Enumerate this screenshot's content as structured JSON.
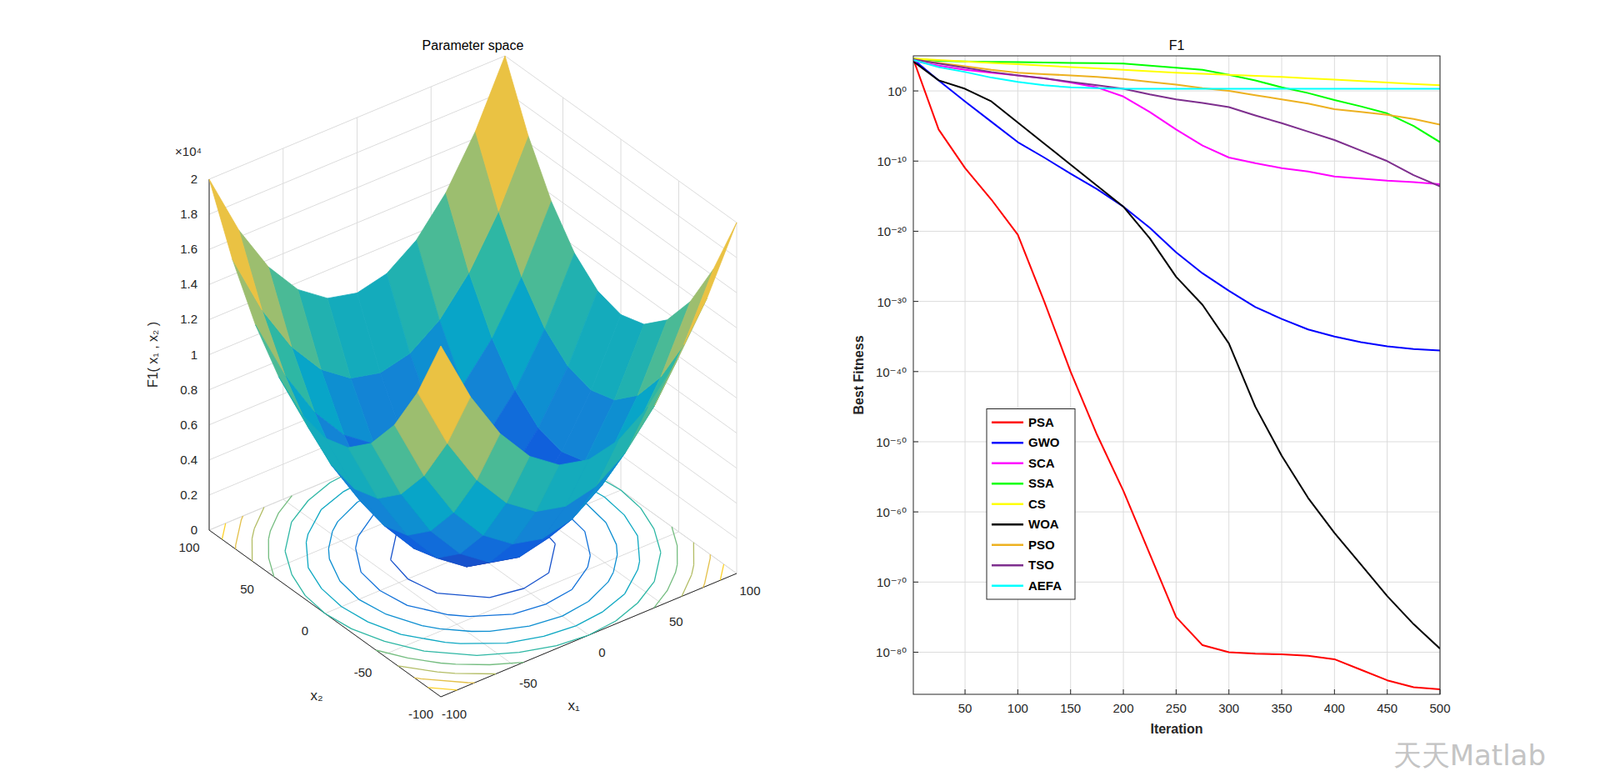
{
  "chart_data": [
    {
      "type": "surface",
      "title": "Parameter space",
      "xlabel": "x₁",
      "ylabel": "x₂",
      "zlabel": "F1( x₁ , x₂ )",
      "annotations": [
        "×10⁴"
      ],
      "x": [
        -100,
        -80,
        -60,
        -40,
        -20,
        0,
        20,
        40,
        60,
        80,
        100
      ],
      "y": [
        -100,
        -80,
        -60,
        -40,
        -20,
        0,
        20,
        40,
        60,
        80,
        100
      ],
      "z": [
        [
          20000,
          16400,
          13600,
          11600,
          10400,
          10000,
          10400,
          11600,
          13600,
          16400,
          20000
        ],
        [
          16400,
          12800,
          10000,
          8000,
          6800,
          6400,
          6800,
          8000,
          10000,
          12800,
          16400
        ],
        [
          13600,
          10000,
          7200,
          5200,
          4000,
          3600,
          4000,
          5200,
          7200,
          10000,
          13600
        ],
        [
          11600,
          8000,
          5200,
          3200,
          2000,
          1600,
          2000,
          3200,
          5200,
          8000,
          11600
        ],
        [
          10400,
          6800,
          4000,
          2000,
          800,
          400,
          800,
          2000,
          4000,
          6800,
          10400
        ],
        [
          10000,
          6400,
          3600,
          1600,
          400,
          0,
          400,
          1600,
          3600,
          6400,
          10000
        ],
        [
          10400,
          6800,
          4000,
          2000,
          800,
          400,
          800,
          2000,
          4000,
          6800,
          10400
        ],
        [
          11600,
          8000,
          5200,
          3200,
          2000,
          1600,
          2000,
          3200,
          5200,
          8000,
          11600
        ],
        [
          13600,
          10000,
          7200,
          5200,
          4000,
          3600,
          4000,
          5200,
          7200,
          10000,
          13600
        ],
        [
          16400,
          12800,
          10000,
          8000,
          6800,
          6400,
          6800,
          8000,
          10000,
          12800,
          16400
        ],
        [
          20000,
          16400,
          13600,
          11600,
          10400,
          10000,
          10400,
          11600,
          13600,
          16400,
          20000
        ]
      ],
      "contour_levels": [
        2000,
        4000,
        6000,
        8000,
        10000,
        12000,
        14000,
        16000,
        18000
      ],
      "xlim": [
        -100,
        100
      ],
      "ylim": [
        -100,
        100
      ],
      "zlim": [
        0,
        20000
      ],
      "xticks": [
        -100,
        -50,
        0,
        50,
        100
      ],
      "yticks": [
        -100,
        -50,
        0,
        50,
        100
      ],
      "zticks": [
        0,
        {
          "value": 2000,
          "label": "0.2"
        },
        {
          "value": 4000,
          "label": "0.4"
        },
        {
          "value": 6000,
          "label": "0.6"
        },
        {
          "value": 8000,
          "label": "0.8"
        },
        {
          "value": 10000,
          "label": "1"
        },
        {
          "value": 12000,
          "label": "1.2"
        },
        {
          "value": 14000,
          "label": "1.4"
        },
        {
          "value": 16000,
          "label": "1.6"
        },
        {
          "value": 18000,
          "label": "1.8"
        },
        {
          "value": 20000,
          "label": "2"
        }
      ],
      "grid": true
    },
    {
      "type": "line",
      "title": "F1",
      "xlabel": "Iteration",
      "ylabel": "Best Fitness",
      "annotations": [
        "天天Matlab"
      ],
      "x": [
        1,
        25,
        50,
        75,
        100,
        125,
        150,
        175,
        200,
        225,
        250,
        275,
        300,
        325,
        350,
        375,
        400,
        425,
        450,
        475,
        500
      ],
      "series": [
        {
          "name": "PSA",
          "color": "#ff0000",
          "values": [
            32000.0,
            3.2e-06,
            1e-11,
            3.2e-16,
            3.2e-21,
            1e-30,
            1e-40,
            1e-49,
            1e-57,
            1e-66,
            1e-75,
            1e-79,
            1e-80,
            6.3e-81,
            5e-81,
            3.2e-81,
            1e-81,
            3.2e-83,
            1e-84,
            1e-85,
            5e-86
          ]
        },
        {
          "name": "GWO",
          "color": "#0000ff",
          "values": [
            32000.0,
            32,
            0.032,
            4e-05,
            5e-08,
            3.2e-10,
            1.6e-12,
            1e-14,
            3.2e-17,
            3.2e-20,
            1e-23,
            1e-26,
            3.2e-29,
            1.6e-31,
            3.2e-33,
            1e-34,
            1e-35,
            1.6e-36,
            4e-37,
            1.6e-37,
            1e-37
          ]
        },
        {
          "name": "SCA",
          "color": "#ff00ff",
          "values": [
            20000.0,
            4000.0,
            1000.0,
            400.0,
            160.0,
            63,
            16,
            3.2,
            0.16,
            0.001,
            3.2e-06,
            1.6e-08,
            3.2e-10,
            5e-11,
            1e-11,
            3.2e-12,
            6.3e-13,
            3.2e-13,
            1.6e-13,
            1e-13,
            5e-14
          ]
        },
        {
          "name": "SSA",
          "color": "#00ff00",
          "values": [
            40000.0,
            20000.0,
            16000.0,
            14000.0,
            13000.0,
            11000.0,
            10000.0,
            8900.0,
            7900.0,
            4000.0,
            2000.0,
            1000.0,
            200.0,
            32,
            3.2,
            0.5,
            0.05,
            0.0063,
            0.00063,
            1e-05,
            5e-08
          ]
        },
        {
          "name": "CS",
          "color": "#ffff00",
          "values": [
            40000.0,
            25000.0,
            16000.0,
            10000.0,
            6300.0,
            4000.0,
            2500.0,
            1600.0,
            1000.0,
            630.0,
            400.0,
            280.0,
            200.0,
            140.0,
            100.0,
            63,
            40,
            25,
            16,
            10,
            6.3
          ]
        },
        {
          "name": "WOA",
          "color": "#000000",
          "values": [
            16000.0,
            32,
            2.0,
            0.032,
            3.2e-05,
            3.2e-08,
            3.2e-11,
            3.2e-14,
            3.2e-17,
            1e-21,
            3.2e-27,
            3.2e-31,
            1e-36,
            1e-45,
            1e-52,
            1e-58,
            1e-63,
            3.2e-68,
            1e-72,
            1e-76,
            3.2e-80
          ]
        },
        {
          "name": "PSO",
          "color": "#edb120",
          "values": [
            32000.0,
            10000.0,
            3200.0,
            1000.0,
            400.0,
            250.0,
            160.0,
            100.0,
            50,
            20,
            7.9,
            2.5,
            1,
            0.25,
            0.063,
            0.016,
            0.0025,
            0.001,
            0.0004,
            0.0001,
            1.6e-05
          ]
        },
        {
          "name": "TSO",
          "color": "#7e2f8e",
          "values": [
            32000.0,
            7900.0,
            2000.0,
            500.0,
            160.0,
            63,
            20,
            6.3,
            2.0,
            0.32,
            0.063,
            0.02,
            0.005,
            0.00032,
            2.5e-05,
            1.6e-06,
            1e-07,
            3.2e-09,
            1e-10,
            1e-12,
            2.5e-14
          ]
        },
        {
          "name": "AEFA",
          "color": "#00ffff",
          "values": [
            25000.0,
            2500.0,
            500.0,
            79,
            20,
            6.3,
            3.2,
            2.5,
            2.0,
            2.0,
            2.0,
            2.0,
            2.0,
            2.0,
            2.0,
            2.0,
            2.0,
            2.0,
            2.0,
            2.0,
            2.0
          ]
        }
      ],
      "xlim": [
        1,
        500
      ],
      "ylim": [
        1e-86,
        100000.0
      ],
      "xticks": [
        50,
        100,
        150,
        200,
        250,
        300,
        350,
        400,
        450,
        500
      ],
      "yticks": [
        {
          "value": 1e-80,
          "label": "10⁻⁸⁰"
        },
        {
          "value": 1e-70,
          "label": "10⁻⁷⁰"
        },
        {
          "value": 1e-60,
          "label": "10⁻⁶⁰"
        },
        {
          "value": 1e-50,
          "label": "10⁻⁵⁰"
        },
        {
          "value": 1e-40,
          "label": "10⁻⁴⁰"
        },
        {
          "value": 1e-30,
          "label": "10⁻³⁰"
        },
        {
          "value": 1e-20,
          "label": "10⁻²⁰"
        },
        {
          "value": 1e-10,
          "label": "10⁻¹⁰"
        },
        {
          "value": 1,
          "label": "10⁰"
        }
      ],
      "log": "y",
      "grid": true,
      "legend": "lower left"
    }
  ]
}
